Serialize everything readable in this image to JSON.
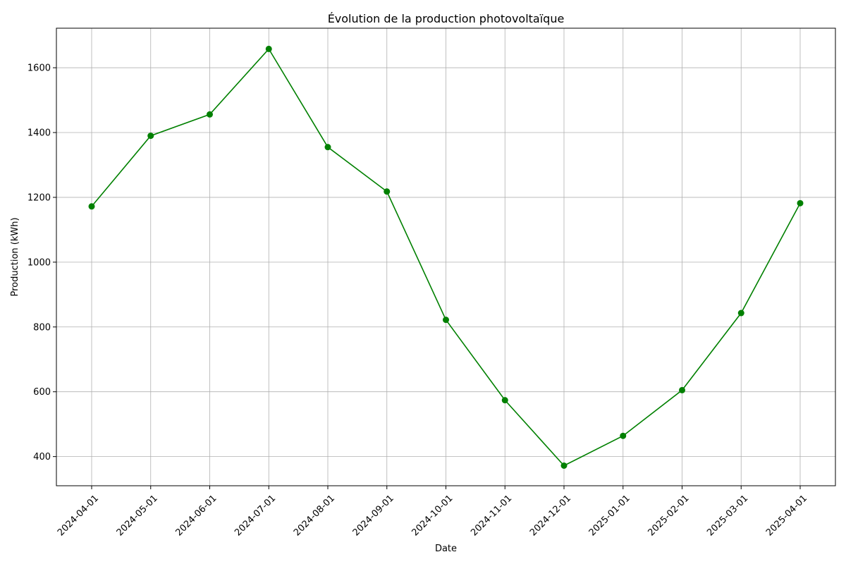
{
  "chart_data": {
    "type": "line",
    "title": "Évolution de la production photovoltaïque",
    "xlabel": "Date",
    "ylabel": "Production (kWh)",
    "categories": [
      "2024-04-01",
      "2024-05-01",
      "2024-06-01",
      "2024-07-01",
      "2024-08-01",
      "2024-09-01",
      "2024-10-01",
      "2024-11-01",
      "2024-12-01",
      "2025-01-01",
      "2025-02-01",
      "2025-03-01",
      "2025-04-01"
    ],
    "series": [
      {
        "values": [
          1172,
          1390,
          1456,
          1658,
          1355,
          1218,
          822,
          574,
          372,
          464,
          605,
          843,
          1182
        ],
        "color": "#008000",
        "marker": "circle"
      }
    ],
    "ylim": [
      310,
      1722
    ],
    "yticks": [
      400,
      600,
      800,
      1000,
      1200,
      1400,
      1600
    ],
    "grid": true,
    "legend": "none"
  }
}
